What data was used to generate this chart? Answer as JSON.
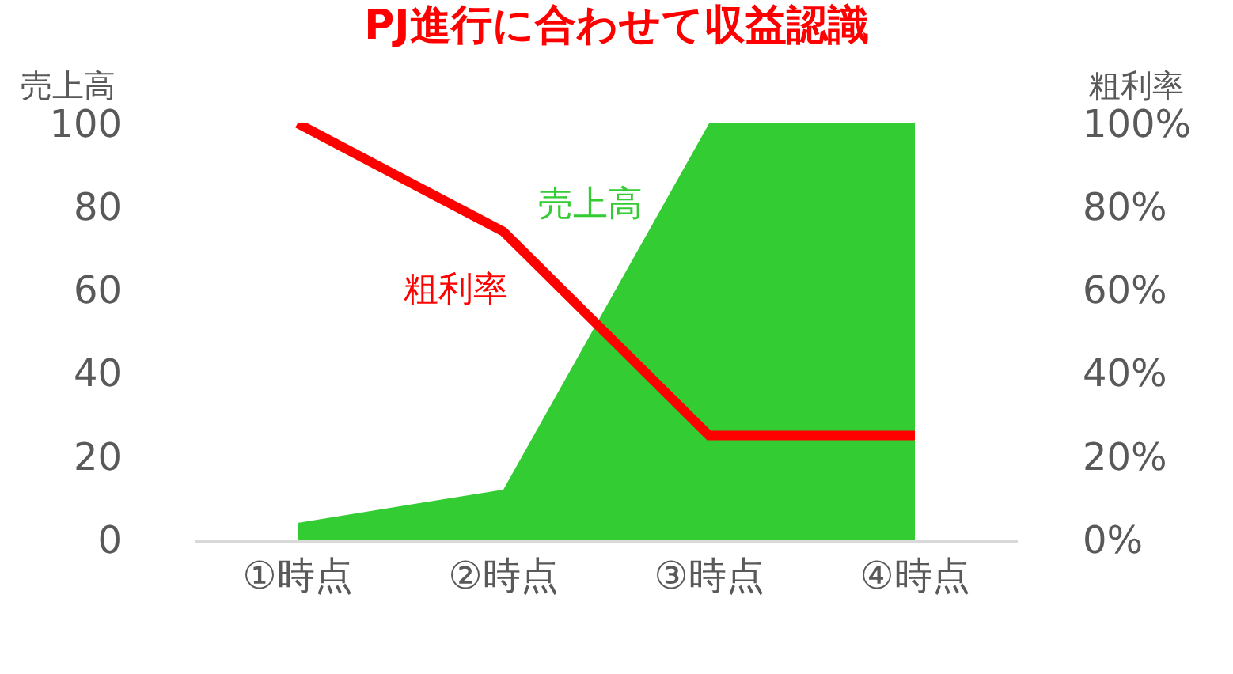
{
  "chart_data": {
    "type": "area",
    "title": "PJ進行に合わせて収益認識",
    "ylabel": "売上高",
    "y2label": "粗利率",
    "categories": [
      "①時点",
      "②時点",
      "③時点",
      "④時点"
    ],
    "series": [
      {
        "name": "売上高",
        "color": "#33cc33",
        "values": [
          4,
          12,
          100,
          100
        ]
      },
      {
        "name": "粗利率",
        "type": "line",
        "color": "#ff0000",
        "axis": "y2",
        "values": [
          1.0,
          0.74,
          0.25,
          0.25
        ]
      }
    ],
    "ylim": [
      0,
      100
    ],
    "yticks": [
      0,
      20,
      40,
      60,
      80,
      100
    ],
    "y2lim": [
      0,
      1
    ],
    "y2ticks": [
      {
        "value": 0,
        "label": "0%"
      },
      {
        "value": 0.2,
        "label": "20%"
      },
      {
        "value": 0.4,
        "label": "40%"
      },
      {
        "value": 0.6,
        "label": "60%"
      },
      {
        "value": 0.8,
        "label": "80%"
      },
      {
        "value": 1,
        "label": "100%"
      }
    ],
    "grid": false,
    "legend": false,
    "marker": "none"
  }
}
